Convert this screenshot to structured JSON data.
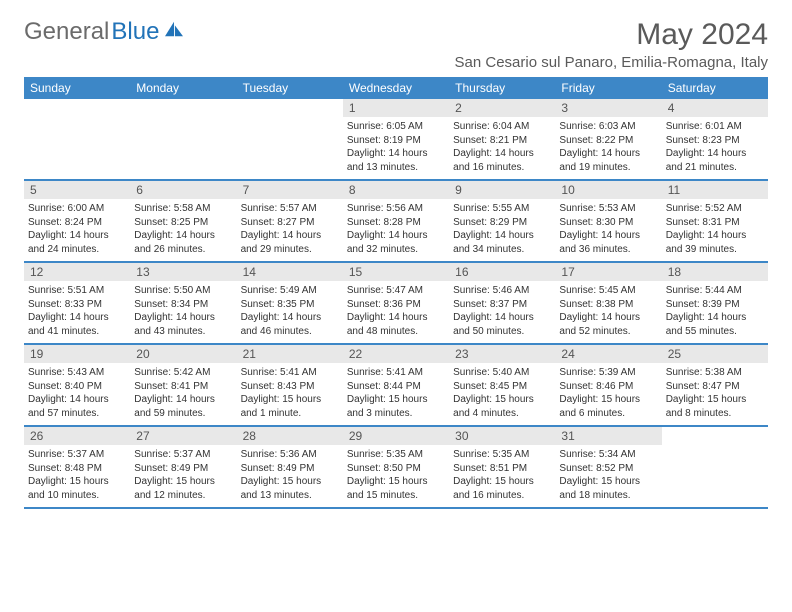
{
  "brand": {
    "part1": "General",
    "part2": "Blue"
  },
  "title": "May 2024",
  "location": "San Cesario sul Panaro, Emilia-Romagna, Italy",
  "header_bg": "#3d87c7",
  "daynum_bg": "#e8e8e8",
  "text_color": "#333333",
  "muted_color": "#5a5a5a",
  "weekdays": [
    "Sunday",
    "Monday",
    "Tuesday",
    "Wednesday",
    "Thursday",
    "Friday",
    "Saturday"
  ],
  "weeks": [
    [
      null,
      null,
      null,
      {
        "n": "1",
        "sr": "Sunrise: 6:05 AM",
        "ss": "Sunset: 8:19 PM",
        "d1": "Daylight: 14 hours",
        "d2": "and 13 minutes."
      },
      {
        "n": "2",
        "sr": "Sunrise: 6:04 AM",
        "ss": "Sunset: 8:21 PM",
        "d1": "Daylight: 14 hours",
        "d2": "and 16 minutes."
      },
      {
        "n": "3",
        "sr": "Sunrise: 6:03 AM",
        "ss": "Sunset: 8:22 PM",
        "d1": "Daylight: 14 hours",
        "d2": "and 19 minutes."
      },
      {
        "n": "4",
        "sr": "Sunrise: 6:01 AM",
        "ss": "Sunset: 8:23 PM",
        "d1": "Daylight: 14 hours",
        "d2": "and 21 minutes."
      }
    ],
    [
      {
        "n": "5",
        "sr": "Sunrise: 6:00 AM",
        "ss": "Sunset: 8:24 PM",
        "d1": "Daylight: 14 hours",
        "d2": "and 24 minutes."
      },
      {
        "n": "6",
        "sr": "Sunrise: 5:58 AM",
        "ss": "Sunset: 8:25 PM",
        "d1": "Daylight: 14 hours",
        "d2": "and 26 minutes."
      },
      {
        "n": "7",
        "sr": "Sunrise: 5:57 AM",
        "ss": "Sunset: 8:27 PM",
        "d1": "Daylight: 14 hours",
        "d2": "and 29 minutes."
      },
      {
        "n": "8",
        "sr": "Sunrise: 5:56 AM",
        "ss": "Sunset: 8:28 PM",
        "d1": "Daylight: 14 hours",
        "d2": "and 32 minutes."
      },
      {
        "n": "9",
        "sr": "Sunrise: 5:55 AM",
        "ss": "Sunset: 8:29 PM",
        "d1": "Daylight: 14 hours",
        "d2": "and 34 minutes."
      },
      {
        "n": "10",
        "sr": "Sunrise: 5:53 AM",
        "ss": "Sunset: 8:30 PM",
        "d1": "Daylight: 14 hours",
        "d2": "and 36 minutes."
      },
      {
        "n": "11",
        "sr": "Sunrise: 5:52 AM",
        "ss": "Sunset: 8:31 PM",
        "d1": "Daylight: 14 hours",
        "d2": "and 39 minutes."
      }
    ],
    [
      {
        "n": "12",
        "sr": "Sunrise: 5:51 AM",
        "ss": "Sunset: 8:33 PM",
        "d1": "Daylight: 14 hours",
        "d2": "and 41 minutes."
      },
      {
        "n": "13",
        "sr": "Sunrise: 5:50 AM",
        "ss": "Sunset: 8:34 PM",
        "d1": "Daylight: 14 hours",
        "d2": "and 43 minutes."
      },
      {
        "n": "14",
        "sr": "Sunrise: 5:49 AM",
        "ss": "Sunset: 8:35 PM",
        "d1": "Daylight: 14 hours",
        "d2": "and 46 minutes."
      },
      {
        "n": "15",
        "sr": "Sunrise: 5:47 AM",
        "ss": "Sunset: 8:36 PM",
        "d1": "Daylight: 14 hours",
        "d2": "and 48 minutes."
      },
      {
        "n": "16",
        "sr": "Sunrise: 5:46 AM",
        "ss": "Sunset: 8:37 PM",
        "d1": "Daylight: 14 hours",
        "d2": "and 50 minutes."
      },
      {
        "n": "17",
        "sr": "Sunrise: 5:45 AM",
        "ss": "Sunset: 8:38 PM",
        "d1": "Daylight: 14 hours",
        "d2": "and 52 minutes."
      },
      {
        "n": "18",
        "sr": "Sunrise: 5:44 AM",
        "ss": "Sunset: 8:39 PM",
        "d1": "Daylight: 14 hours",
        "d2": "and 55 minutes."
      }
    ],
    [
      {
        "n": "19",
        "sr": "Sunrise: 5:43 AM",
        "ss": "Sunset: 8:40 PM",
        "d1": "Daylight: 14 hours",
        "d2": "and 57 minutes."
      },
      {
        "n": "20",
        "sr": "Sunrise: 5:42 AM",
        "ss": "Sunset: 8:41 PM",
        "d1": "Daylight: 14 hours",
        "d2": "and 59 minutes."
      },
      {
        "n": "21",
        "sr": "Sunrise: 5:41 AM",
        "ss": "Sunset: 8:43 PM",
        "d1": "Daylight: 15 hours",
        "d2": "and 1 minute."
      },
      {
        "n": "22",
        "sr": "Sunrise: 5:41 AM",
        "ss": "Sunset: 8:44 PM",
        "d1": "Daylight: 15 hours",
        "d2": "and 3 minutes."
      },
      {
        "n": "23",
        "sr": "Sunrise: 5:40 AM",
        "ss": "Sunset: 8:45 PM",
        "d1": "Daylight: 15 hours",
        "d2": "and 4 minutes."
      },
      {
        "n": "24",
        "sr": "Sunrise: 5:39 AM",
        "ss": "Sunset: 8:46 PM",
        "d1": "Daylight: 15 hours",
        "d2": "and 6 minutes."
      },
      {
        "n": "25",
        "sr": "Sunrise: 5:38 AM",
        "ss": "Sunset: 8:47 PM",
        "d1": "Daylight: 15 hours",
        "d2": "and 8 minutes."
      }
    ],
    [
      {
        "n": "26",
        "sr": "Sunrise: 5:37 AM",
        "ss": "Sunset: 8:48 PM",
        "d1": "Daylight: 15 hours",
        "d2": "and 10 minutes."
      },
      {
        "n": "27",
        "sr": "Sunrise: 5:37 AM",
        "ss": "Sunset: 8:49 PM",
        "d1": "Daylight: 15 hours",
        "d2": "and 12 minutes."
      },
      {
        "n": "28",
        "sr": "Sunrise: 5:36 AM",
        "ss": "Sunset: 8:49 PM",
        "d1": "Daylight: 15 hours",
        "d2": "and 13 minutes."
      },
      {
        "n": "29",
        "sr": "Sunrise: 5:35 AM",
        "ss": "Sunset: 8:50 PM",
        "d1": "Daylight: 15 hours",
        "d2": "and 15 minutes."
      },
      {
        "n": "30",
        "sr": "Sunrise: 5:35 AM",
        "ss": "Sunset: 8:51 PM",
        "d1": "Daylight: 15 hours",
        "d2": "and 16 minutes."
      },
      {
        "n": "31",
        "sr": "Sunrise: 5:34 AM",
        "ss": "Sunset: 8:52 PM",
        "d1": "Daylight: 15 hours",
        "d2": "and 18 minutes."
      },
      null
    ]
  ]
}
